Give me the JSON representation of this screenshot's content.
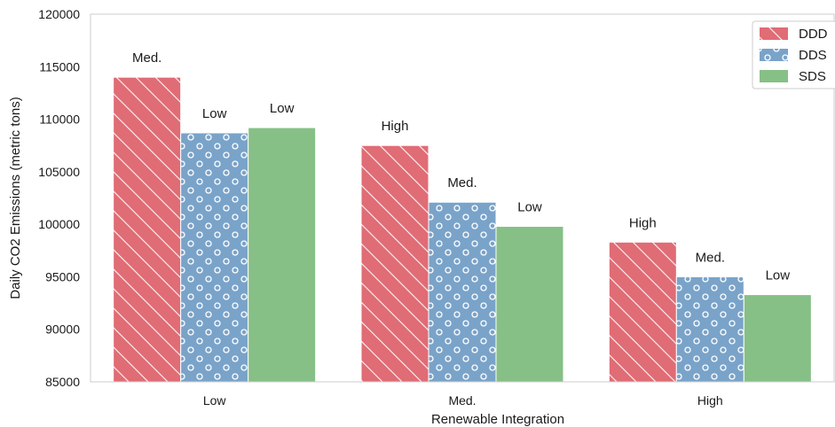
{
  "chart_data": {
    "type": "bar",
    "title": "",
    "xlabel": "Renewable Integration",
    "ylabel": "Daily CO2 Emissions (metric tons)",
    "categories": [
      "Low",
      "Med.",
      "High"
    ],
    "ylim": [
      85000,
      120000
    ],
    "yticks": [
      85000,
      90000,
      95000,
      100000,
      105000,
      110000,
      115000,
      120000
    ],
    "grid": false,
    "legend_position": "top-right",
    "series": [
      {
        "name": "DDD",
        "color": "#e06c75",
        "pattern": "diagonal-hatch",
        "values": [
          114000,
          107500,
          98300
        ],
        "bar_labels": [
          "Med.",
          "High",
          "High"
        ]
      },
      {
        "name": "DDS",
        "color": "#7aa3c9",
        "pattern": "circles",
        "values": [
          108700,
          102100,
          95000
        ],
        "bar_labels": [
          "Low",
          "Med.",
          "Med."
        ]
      },
      {
        "name": "SDS",
        "color": "#86c086",
        "pattern": "solid",
        "values": [
          109200,
          99800,
          93300
        ],
        "bar_labels": [
          "Low",
          "Low",
          "Low"
        ]
      }
    ]
  }
}
